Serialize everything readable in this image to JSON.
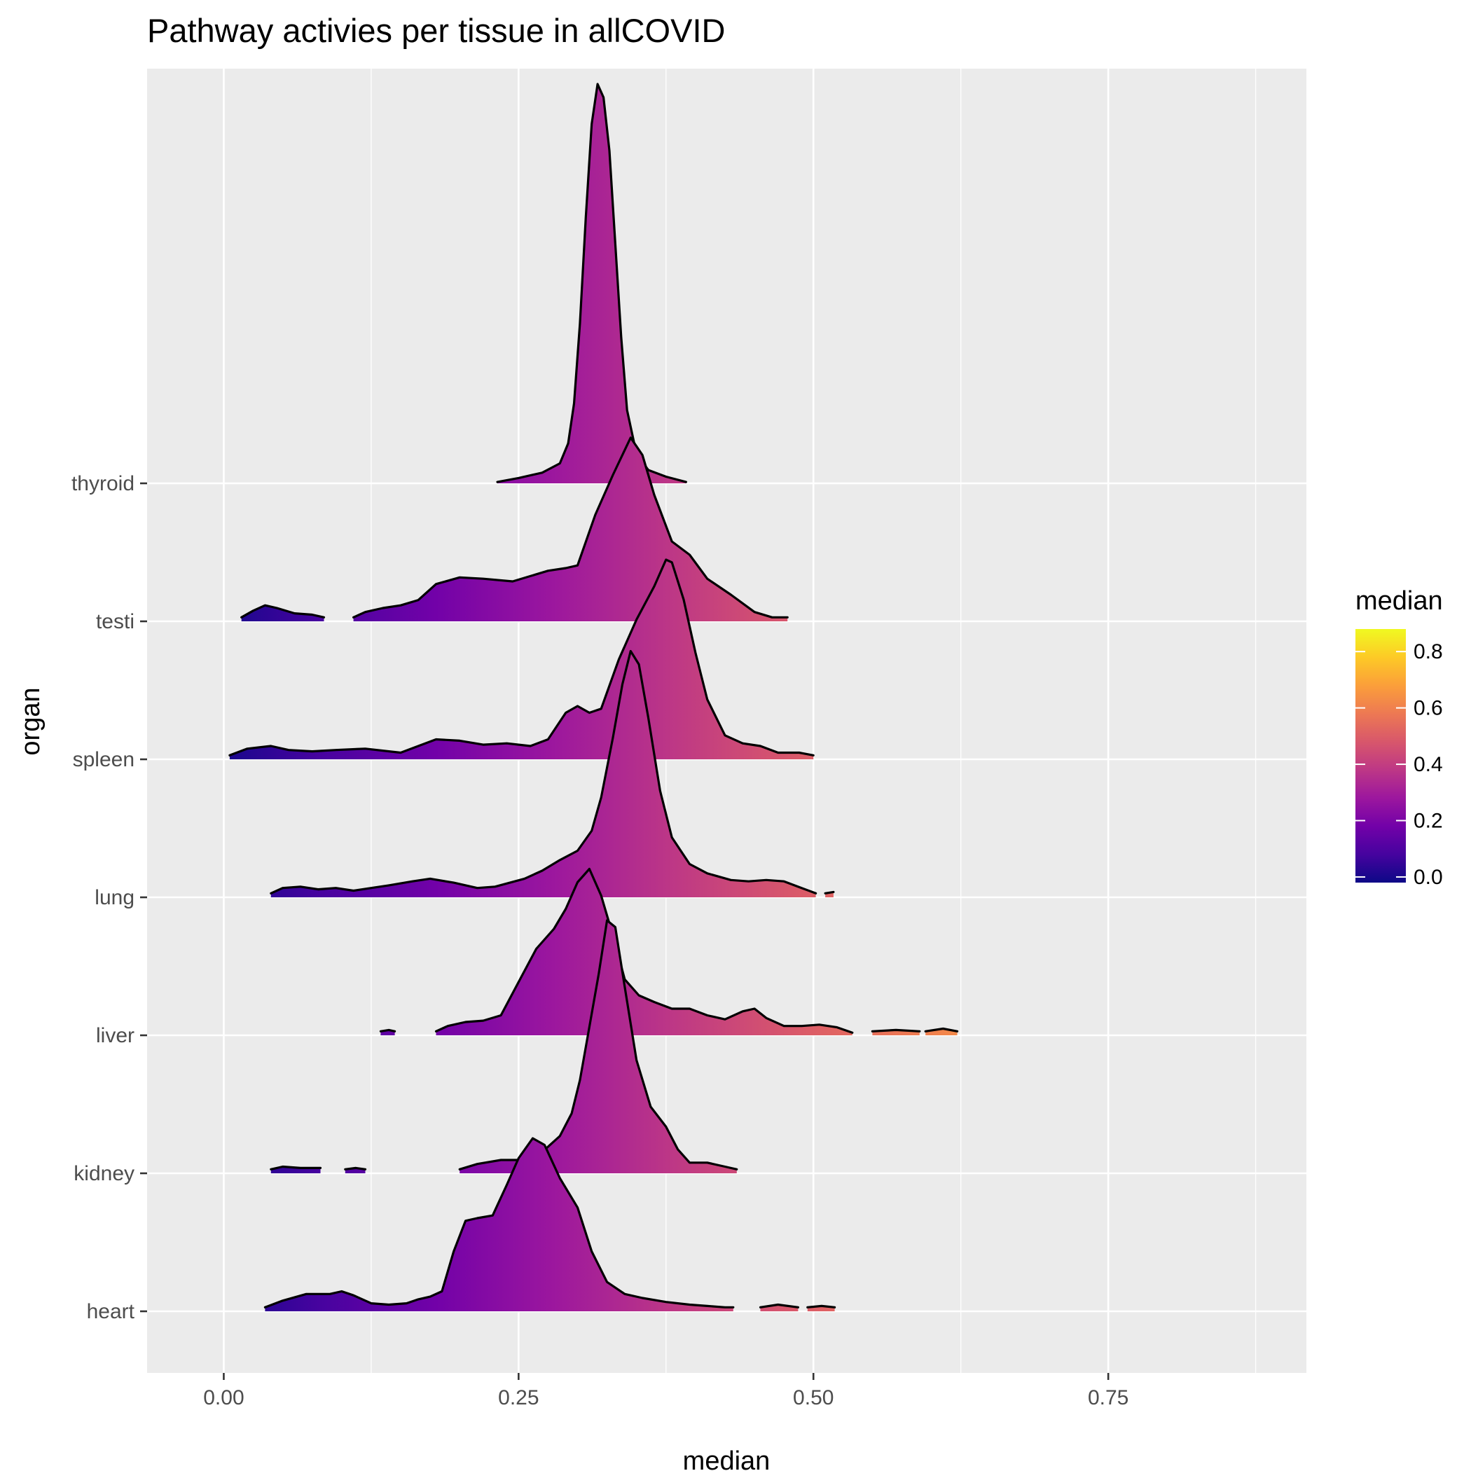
{
  "chart_data": {
    "type": "ridgeline",
    "title": "Pathway activies per tissue in allCOVID",
    "xlabel": "median",
    "ylabel": "organ",
    "xlim": [
      -0.065,
      0.918
    ],
    "x_ticks": [
      0.0,
      0.25,
      0.5,
      0.75
    ],
    "x_tick_labels": [
      "0.00",
      "0.25",
      "0.50",
      "0.75"
    ],
    "categories": [
      "heart",
      "kidney",
      "liver",
      "lung",
      "spleen",
      "testi",
      "thyroid"
    ],
    "legend": {
      "title": "median",
      "range": [
        -0.02,
        0.88
      ],
      "ticks": [
        0.0,
        0.2,
        0.4,
        0.6,
        0.8
      ],
      "tick_labels": [
        "0.0",
        "0.2",
        "0.4",
        "0.6",
        "0.8"
      ],
      "colormap": "plasma",
      "position": "right"
    },
    "series": [
      {
        "name": "thyroid",
        "segments": [
          [
            [
              0.232,
              0.01
            ],
            [
              0.25,
              0.04
            ],
            [
              0.27,
              0.08
            ],
            [
              0.285,
              0.15
            ],
            [
              0.292,
              0.3
            ],
            [
              0.297,
              0.6
            ],
            [
              0.302,
              1.2
            ],
            [
              0.307,
              2.0
            ],
            [
              0.312,
              2.7
            ],
            [
              0.317,
              3.0
            ],
            [
              0.322,
              2.9
            ],
            [
              0.327,
              2.5
            ],
            [
              0.332,
              1.8
            ],
            [
              0.337,
              1.1
            ],
            [
              0.342,
              0.55
            ],
            [
              0.35,
              0.22
            ],
            [
              0.36,
              0.1
            ],
            [
              0.375,
              0.05
            ],
            [
              0.392,
              0.01
            ]
          ]
        ]
      },
      {
        "name": "testi",
        "segments": [
          [
            [
              0.015,
              0.03
            ],
            [
              0.025,
              0.08
            ],
            [
              0.035,
              0.12
            ],
            [
              0.045,
              0.1
            ],
            [
              0.06,
              0.06
            ],
            [
              0.075,
              0.05
            ],
            [
              0.085,
              0.03
            ]
          ],
          [
            [
              0.11,
              0.03
            ],
            [
              0.12,
              0.07
            ],
            [
              0.135,
              0.1
            ],
            [
              0.15,
              0.12
            ],
            [
              0.165,
              0.16
            ],
            [
              0.18,
              0.28
            ],
            [
              0.2,
              0.33
            ],
            [
              0.22,
              0.32
            ],
            [
              0.245,
              0.3
            ],
            [
              0.26,
              0.34
            ],
            [
              0.275,
              0.38
            ],
            [
              0.29,
              0.4
            ],
            [
              0.3,
              0.42
            ],
            [
              0.315,
              0.8
            ],
            [
              0.33,
              1.1
            ],
            [
              0.345,
              1.38
            ],
            [
              0.355,
              1.25
            ],
            [
              0.365,
              0.95
            ],
            [
              0.38,
              0.6
            ],
            [
              0.395,
              0.5
            ],
            [
              0.41,
              0.32
            ],
            [
              0.43,
              0.2
            ],
            [
              0.45,
              0.07
            ],
            [
              0.465,
              0.03
            ],
            [
              0.478,
              0.03
            ]
          ]
        ]
      },
      {
        "name": "spleen",
        "segments": [
          [
            [
              0.005,
              0.03
            ],
            [
              0.02,
              0.08
            ],
            [
              0.04,
              0.1
            ],
            [
              0.055,
              0.07
            ],
            [
              0.075,
              0.06
            ],
            [
              0.095,
              0.07
            ],
            [
              0.12,
              0.08
            ],
            [
              0.15,
              0.05
            ],
            [
              0.165,
              0.1
            ],
            [
              0.18,
              0.15
            ],
            [
              0.2,
              0.14
            ],
            [
              0.22,
              0.11
            ],
            [
              0.24,
              0.12
            ],
            [
              0.26,
              0.1
            ],
            [
              0.275,
              0.15
            ],
            [
              0.29,
              0.35
            ],
            [
              0.3,
              0.4
            ],
            [
              0.31,
              0.35
            ],
            [
              0.32,
              0.38
            ],
            [
              0.335,
              0.75
            ],
            [
              0.35,
              1.05
            ],
            [
              0.365,
              1.3
            ],
            [
              0.375,
              1.5
            ],
            [
              0.38,
              1.48
            ],
            [
              0.39,
              1.2
            ],
            [
              0.4,
              0.8
            ],
            [
              0.41,
              0.45
            ],
            [
              0.425,
              0.18
            ],
            [
              0.44,
              0.12
            ],
            [
              0.455,
              0.1
            ],
            [
              0.47,
              0.05
            ],
            [
              0.488,
              0.05
            ],
            [
              0.5,
              0.03
            ]
          ]
        ]
      },
      {
        "name": "lung",
        "segments": [
          [
            [
              0.04,
              0.03
            ],
            [
              0.05,
              0.07
            ],
            [
              0.065,
              0.08
            ],
            [
              0.08,
              0.06
            ],
            [
              0.095,
              0.07
            ],
            [
              0.11,
              0.05
            ],
            [
              0.125,
              0.07
            ],
            [
              0.14,
              0.09
            ],
            [
              0.16,
              0.12
            ],
            [
              0.175,
              0.14
            ],
            [
              0.195,
              0.11
            ],
            [
              0.215,
              0.07
            ],
            [
              0.23,
              0.08
            ],
            [
              0.255,
              0.14
            ],
            [
              0.27,
              0.2
            ],
            [
              0.285,
              0.28
            ],
            [
              0.3,
              0.35
            ],
            [
              0.312,
              0.5
            ],
            [
              0.32,
              0.75
            ],
            [
              0.33,
              1.2
            ],
            [
              0.338,
              1.6
            ],
            [
              0.345,
              1.85
            ],
            [
              0.352,
              1.75
            ],
            [
              0.36,
              1.35
            ],
            [
              0.37,
              0.8
            ],
            [
              0.38,
              0.45
            ],
            [
              0.395,
              0.25
            ],
            [
              0.41,
              0.18
            ],
            [
              0.43,
              0.13
            ],
            [
              0.445,
              0.12
            ],
            [
              0.46,
              0.13
            ],
            [
              0.475,
              0.12
            ],
            [
              0.49,
              0.07
            ],
            [
              0.502,
              0.03
            ]
          ],
          [
            [
              0.51,
              0.03
            ],
            [
              0.517,
              0.04
            ]
          ]
        ]
      },
      {
        "name": "liver",
        "segments": [
          [
            [
              0.133,
              0.03
            ],
            [
              0.14,
              0.04
            ],
            [
              0.145,
              0.03
            ]
          ],
          [
            [
              0.18,
              0.03
            ],
            [
              0.19,
              0.07
            ],
            [
              0.205,
              0.1
            ],
            [
              0.22,
              0.11
            ],
            [
              0.235,
              0.15
            ],
            [
              0.25,
              0.4
            ],
            [
              0.265,
              0.65
            ],
            [
              0.28,
              0.8
            ],
            [
              0.29,
              0.95
            ],
            [
              0.3,
              1.15
            ],
            [
              0.31,
              1.25
            ],
            [
              0.32,
              1.05
            ],
            [
              0.33,
              0.75
            ],
            [
              0.34,
              0.42
            ],
            [
              0.352,
              0.3
            ],
            [
              0.365,
              0.25
            ],
            [
              0.38,
              0.2
            ],
            [
              0.395,
              0.2
            ],
            [
              0.41,
              0.15
            ],
            [
              0.425,
              0.12
            ],
            [
              0.44,
              0.18
            ],
            [
              0.45,
              0.2
            ],
            [
              0.46,
              0.13
            ],
            [
              0.475,
              0.07
            ],
            [
              0.49,
              0.07
            ],
            [
              0.505,
              0.08
            ],
            [
              0.52,
              0.06
            ],
            [
              0.533,
              0.02
            ]
          ],
          [
            [
              0.55,
              0.03
            ],
            [
              0.57,
              0.04
            ],
            [
              0.59,
              0.03
            ]
          ],
          [
            [
              0.595,
              0.03
            ],
            [
              0.61,
              0.05
            ],
            [
              0.622,
              0.03
            ]
          ]
        ]
      },
      {
        "name": "kidney",
        "segments": [
          [
            [
              0.04,
              0.03
            ],
            [
              0.05,
              0.05
            ],
            [
              0.065,
              0.04
            ],
            [
              0.082,
              0.04
            ]
          ],
          [
            [
              0.103,
              0.03
            ],
            [
              0.112,
              0.04
            ],
            [
              0.12,
              0.03
            ]
          ],
          [
            [
              0.2,
              0.03
            ],
            [
              0.215,
              0.07
            ],
            [
              0.235,
              0.1
            ],
            [
              0.255,
              0.1
            ],
            [
              0.27,
              0.16
            ],
            [
              0.285,
              0.28
            ],
            [
              0.295,
              0.45
            ],
            [
              0.302,
              0.7
            ],
            [
              0.31,
              1.1
            ],
            [
              0.318,
              1.5
            ],
            [
              0.325,
              1.9
            ],
            [
              0.332,
              1.85
            ],
            [
              0.34,
              1.4
            ],
            [
              0.35,
              0.85
            ],
            [
              0.362,
              0.5
            ],
            [
              0.375,
              0.35
            ],
            [
              0.385,
              0.18
            ],
            [
              0.395,
              0.08
            ],
            [
              0.41,
              0.08
            ],
            [
              0.425,
              0.05
            ],
            [
              0.435,
              0.03
            ]
          ]
        ]
      },
      {
        "name": "heart",
        "segments": [
          [
            [
              0.035,
              0.03
            ],
            [
              0.05,
              0.08
            ],
            [
              0.07,
              0.13
            ],
            [
              0.09,
              0.13
            ],
            [
              0.1,
              0.15
            ],
            [
              0.11,
              0.12
            ],
            [
              0.125,
              0.06
            ],
            [
              0.14,
              0.05
            ],
            [
              0.155,
              0.06
            ],
            [
              0.165,
              0.09
            ],
            [
              0.175,
              0.11
            ],
            [
              0.185,
              0.15
            ],
            [
              0.195,
              0.45
            ],
            [
              0.205,
              0.68
            ],
            [
              0.215,
              0.7
            ],
            [
              0.228,
              0.72
            ],
            [
              0.24,
              0.95
            ],
            [
              0.25,
              1.15
            ],
            [
              0.262,
              1.3
            ],
            [
              0.272,
              1.25
            ],
            [
              0.285,
              1.0
            ],
            [
              0.3,
              0.78
            ],
            [
              0.312,
              0.45
            ],
            [
              0.325,
              0.22
            ],
            [
              0.34,
              0.13
            ],
            [
              0.355,
              0.1
            ],
            [
              0.375,
              0.07
            ],
            [
              0.395,
              0.05
            ],
            [
              0.41,
              0.04
            ],
            [
              0.425,
              0.03
            ],
            [
              0.432,
              0.03
            ]
          ],
          [
            [
              0.455,
              0.03
            ],
            [
              0.47,
              0.05
            ],
            [
              0.487,
              0.03
            ]
          ],
          [
            [
              0.495,
              0.03
            ],
            [
              0.507,
              0.04
            ],
            [
              0.518,
              0.03
            ]
          ]
        ]
      }
    ]
  }
}
